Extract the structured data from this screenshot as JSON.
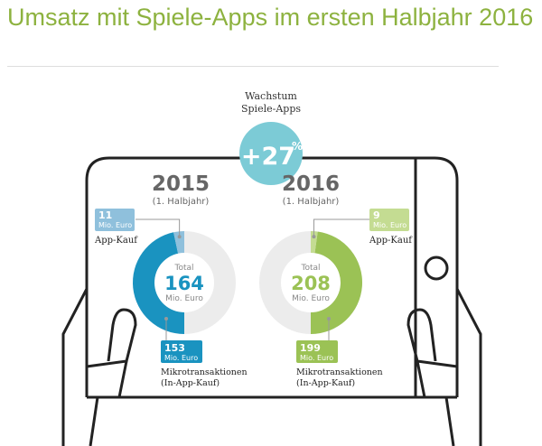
{
  "title": "Umsatz mit Spiele-Apps im ersten Halbjahr 2016",
  "growth": {
    "label_line1": "Wachstum",
    "label_line2": "Spiele-Apps",
    "value": "+27",
    "unit": "%"
  },
  "colors": {
    "title": "#8db23f",
    "growth": "#7ccbd6",
    "blue": "#1a93c0",
    "light_blue": "#8fc0dc",
    "green": "#9bc255",
    "light_green": "#c4dc92",
    "gray": "#ececec"
  },
  "chart_data": [
    {
      "type": "pie",
      "year": "2015",
      "subtitle": "(1. Halbjahr)",
      "total_label": "Total",
      "total": 164,
      "unit": "Mio. Euro",
      "slices": [
        {
          "name": "App-Kauf",
          "value": 11,
          "unit": "Mio. Euro"
        },
        {
          "name_line1": "Mikrotransaktionen",
          "name_line2": "(In-App-Kauf)",
          "value": 153,
          "unit": "Mio. Euro"
        }
      ]
    },
    {
      "type": "pie",
      "year": "2016",
      "subtitle": "(1. Halbjahr)",
      "total_label": "Total",
      "total": 208,
      "unit": "Mio. Euro",
      "slices": [
        {
          "name": "App-Kauf",
          "value": 9,
          "unit": "Mio. Euro"
        },
        {
          "name_line1": "Mikrotransaktionen",
          "name_line2": "(In-App-Kauf)",
          "value": 199,
          "unit": "Mio. Euro"
        }
      ]
    }
  ]
}
